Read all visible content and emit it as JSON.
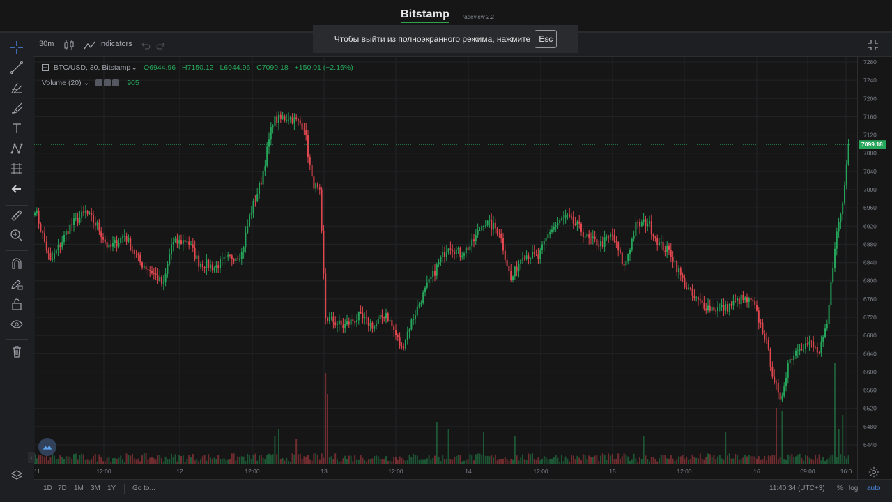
{
  "header": {
    "logo": "Bitstamp",
    "subtitle": "Tradeview 2.2"
  },
  "fullscreen_notice": {
    "text": "Чтобы выйти из полноэкранного режима, нажмите",
    "key": "Esc"
  },
  "top_toolbar": {
    "interval": "30m",
    "indicators_label": "Indicators"
  },
  "legend": {
    "symbol": "BTC/USD, 30, Bitstamp",
    "open": "O6944.96",
    "high": "H7150.12",
    "low": "L6944.96",
    "close": "C7099.18",
    "change": "+150.01 (+2.16%)",
    "volume_label": "Volume (20)",
    "volume_value": "905"
  },
  "bottom_toolbar": {
    "ranges": [
      "1D",
      "7D",
      "1M",
      "3M",
      "1Y"
    ],
    "goto": "Go to...",
    "time": "11:40:34 (UTC+3)",
    "percent": "%",
    "log": "log",
    "auto": "auto"
  },
  "colors": {
    "up": "#26a65b",
    "down": "#e0474f",
    "grid": "#232428",
    "background": "#161616"
  },
  "chart_data": {
    "type": "candlestick",
    "ylim": [
      6400,
      7300
    ],
    "y_ticks": [
      7280,
      7240,
      7200,
      7160,
      7120,
      7080,
      7040,
      7000,
      6960,
      6920,
      6880,
      6840,
      6800,
      6760,
      6720,
      6680,
      6640,
      6600,
      6560,
      6520,
      6480,
      6440
    ],
    "x_ticks": [
      "11",
      "12:00",
      "12",
      "12:00",
      "13",
      "12:00",
      "14",
      "12:00",
      "15",
      "12:00",
      "16",
      "09:00",
      "16:0"
    ],
    "last_price": "7099.18",
    "anchors": [
      [
        0,
        6960
      ],
      [
        8,
        6840
      ],
      [
        18,
        6920
      ],
      [
        26,
        6950
      ],
      [
        32,
        6920
      ],
      [
        38,
        6870
      ],
      [
        46,
        6900
      ],
      [
        54,
        6840
      ],
      [
        60,
        6820
      ],
      [
        66,
        6790
      ],
      [
        70,
        6880
      ],
      [
        78,
        6890
      ],
      [
        84,
        6840
      ],
      [
        92,
        6830
      ],
      [
        100,
        6850
      ],
      [
        106,
        6860
      ],
      [
        110,
        6940
      ],
      [
        116,
        7020
      ],
      [
        122,
        7150
      ],
      [
        130,
        7160
      ],
      [
        138,
        7140
      ],
      [
        142,
        7020
      ],
      [
        146,
        6990
      ],
      [
        149,
        6720
      ],
      [
        158,
        6700
      ],
      [
        166,
        6720
      ],
      [
        174,
        6700
      ],
      [
        180,
        6730
      ],
      [
        184,
        6690
      ],
      [
        188,
        6650
      ],
      [
        192,
        6700
      ],
      [
        198,
        6760
      ],
      [
        206,
        6830
      ],
      [
        212,
        6880
      ],
      [
        218,
        6860
      ],
      [
        224,
        6880
      ],
      [
        230,
        6930
      ],
      [
        238,
        6910
      ],
      [
        244,
        6800
      ],
      [
        250,
        6860
      ],
      [
        258,
        6850
      ],
      [
        264,
        6910
      ],
      [
        272,
        6940
      ],
      [
        278,
        6920
      ],
      [
        284,
        6890
      ],
      [
        290,
        6880
      ],
      [
        296,
        6900
      ],
      [
        302,
        6830
      ],
      [
        308,
        6920
      ],
      [
        314,
        6930
      ],
      [
        320,
        6880
      ],
      [
        326,
        6860
      ],
      [
        332,
        6800
      ],
      [
        338,
        6760
      ],
      [
        346,
        6740
      ],
      [
        354,
        6740
      ],
      [
        362,
        6760
      ],
      [
        368,
        6750
      ],
      [
        374,
        6680
      ],
      [
        378,
        6600
      ],
      [
        382,
        6530
      ],
      [
        386,
        6620
      ],
      [
        392,
        6660
      ],
      [
        398,
        6660
      ],
      [
        402,
        6640
      ],
      [
        406,
        6700
      ],
      [
        410,
        6880
      ],
      [
        414,
        6970
      ],
      [
        417,
        7099
      ]
    ],
    "volume_spikes": [
      [
        123,
        40
      ],
      [
        125,
        50
      ],
      [
        134,
        35
      ],
      [
        149,
        130
      ],
      [
        150,
        100
      ],
      [
        206,
        60
      ],
      [
        212,
        50
      ],
      [
        230,
        45
      ],
      [
        246,
        40
      ],
      [
        312,
        40
      ],
      [
        354,
        45
      ],
      [
        380,
        80
      ],
      [
        383,
        75
      ],
      [
        410,
        145
      ],
      [
        412,
        50
      ],
      [
        414,
        70
      ]
    ]
  }
}
